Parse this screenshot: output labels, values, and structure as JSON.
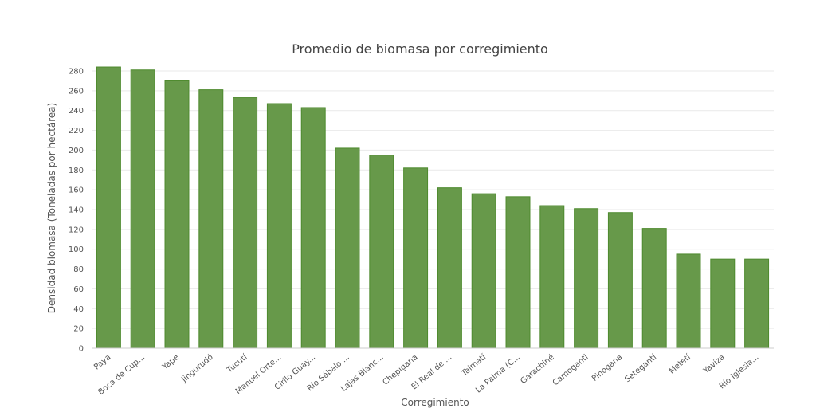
{
  "chart_data": {
    "type": "bar",
    "title": "Promedio de biomasa por corregimiento",
    "xlabel": "Corregimiento",
    "ylabel": "Densidad biomasa (Toneladas por hectárea)",
    "ylim": [
      0,
      280
    ],
    "yticks": [
      0,
      20,
      40,
      60,
      80,
      100,
      120,
      140,
      160,
      180,
      200,
      220,
      240,
      260,
      280
    ],
    "grid": true,
    "categories": [
      "Paya",
      "Boca de Cup...",
      "Yape",
      "Jingurudó",
      "Tucutí",
      "Manuel Orte...",
      "Cirilo Guay...",
      "Río Sábalo ...",
      "Lajas Blanc...",
      "Chepigana",
      "El Real de ...",
      "Taimatí",
      "La Palma (C...",
      "Garachiné",
      "Camoganti",
      "Pinogana",
      "Setegantí",
      "Metetí",
      "Yaviza",
      "Río Iglesia..."
    ],
    "values": [
      284,
      281,
      270,
      261,
      253,
      247,
      243,
      202,
      195,
      182,
      162,
      156,
      153,
      144,
      141,
      137,
      121,
      95,
      90,
      90
    ],
    "colors": {
      "bar_fill": "#67994a",
      "bar_stroke": "#4e8a2e"
    }
  }
}
